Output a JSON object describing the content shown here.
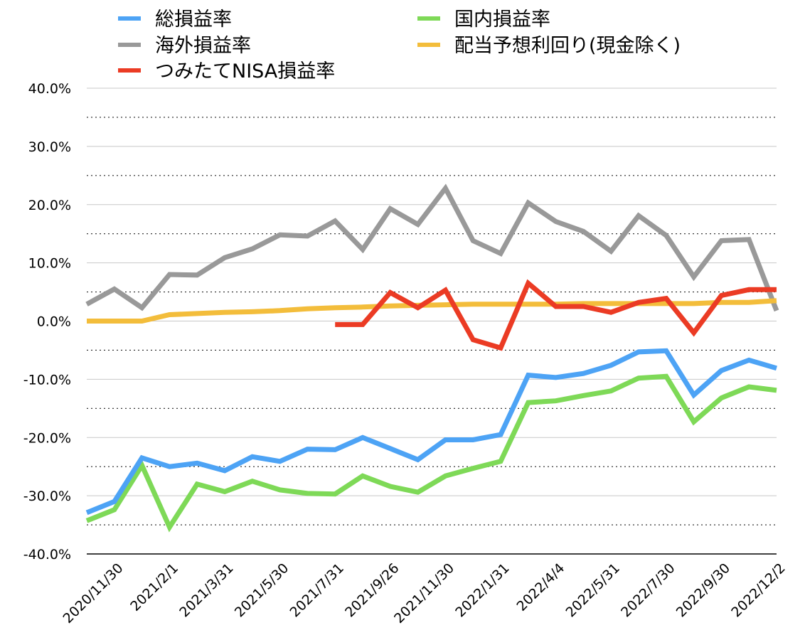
{
  "chart_data": {
    "type": "line",
    "title": "",
    "xlabel": "",
    "ylabel": "",
    "ylim": [
      -40,
      40
    ],
    "y_ticks": [
      "40.0%",
      "30.0%",
      "20.0%",
      "10.0%",
      "0.0%",
      "-10.0%",
      "-20.0%",
      "-30.0%",
      "-40.0%"
    ],
    "x_tick_labels": [
      "2020/11/30",
      "2021/2/1",
      "2021/3/31",
      "2021/5/30",
      "2021/7/31",
      "2021/9/26",
      "2021/11/30",
      "2022/1/31",
      "2022/4/4",
      "2022/5/31",
      "2022/7/30",
      "2022/9/30",
      "2022/12/2"
    ],
    "grid": "solid lines at 10% steps, dotted lines at 5% midpoints",
    "legend_position": "top",
    "point_count": 26,
    "series": [
      {
        "name": "総損益率",
        "color": "#4da3f5",
        "values": [
          -32.9,
          -31.0,
          -23.5,
          -25.0,
          -24.4,
          -25.7,
          -23.3,
          -24.1,
          -22.0,
          -22.1,
          -20.0,
          -21.9,
          -23.8,
          -20.4,
          -20.4,
          -19.5,
          -9.3,
          -9.7,
          -9.0,
          -7.6,
          -5.3,
          -5.1,
          -12.7,
          -8.5,
          -6.7,
          -8.1
        ]
      },
      {
        "name": "海外損益率",
        "color": "#999999",
        "values": [
          2.9,
          5.5,
          2.3,
          8.0,
          7.9,
          10.9,
          12.4,
          14.8,
          14.6,
          17.2,
          12.3,
          19.3,
          16.6,
          22.8,
          13.8,
          11.6,
          20.3,
          17.1,
          15.4,
          12.0,
          18.1,
          14.7,
          7.6,
          13.8,
          14.0,
          1.8
        ]
      },
      {
        "name": "つみたてNISA損益率",
        "color": "#eb3b24",
        "values": [
          null,
          null,
          null,
          null,
          null,
          null,
          null,
          null,
          null,
          -0.6,
          -0.6,
          4.9,
          2.3,
          5.3,
          -3.2,
          -4.6,
          6.5,
          2.5,
          2.5,
          1.5,
          3.2,
          3.9,
          -2.0,
          4.4,
          5.4,
          5.4
        ]
      },
      {
        "name": "国内損益率",
        "color": "#7ed957",
        "values": [
          -34.3,
          -32.4,
          -24.8,
          -35.4,
          -28.0,
          -29.3,
          -27.5,
          -29.0,
          -29.6,
          -29.7,
          -26.6,
          -28.4,
          -29.4,
          -26.6,
          -25.3,
          -24.1,
          -14.0,
          -13.7,
          -12.8,
          -12.0,
          -9.8,
          -9.5,
          -17.3,
          -13.2,
          -11.3,
          -11.9
        ]
      },
      {
        "name": "配当予想利回り(現金除く)",
        "color": "#f3bd3b",
        "values": [
          0.0,
          0.0,
          0.0,
          1.1,
          1.3,
          1.5,
          1.6,
          1.8,
          2.1,
          2.3,
          2.4,
          2.6,
          2.7,
          2.8,
          2.9,
          2.9,
          2.9,
          2.9,
          3.0,
          3.0,
          3.0,
          3.0,
          3.0,
          3.2,
          3.2,
          3.5
        ]
      }
    ]
  }
}
